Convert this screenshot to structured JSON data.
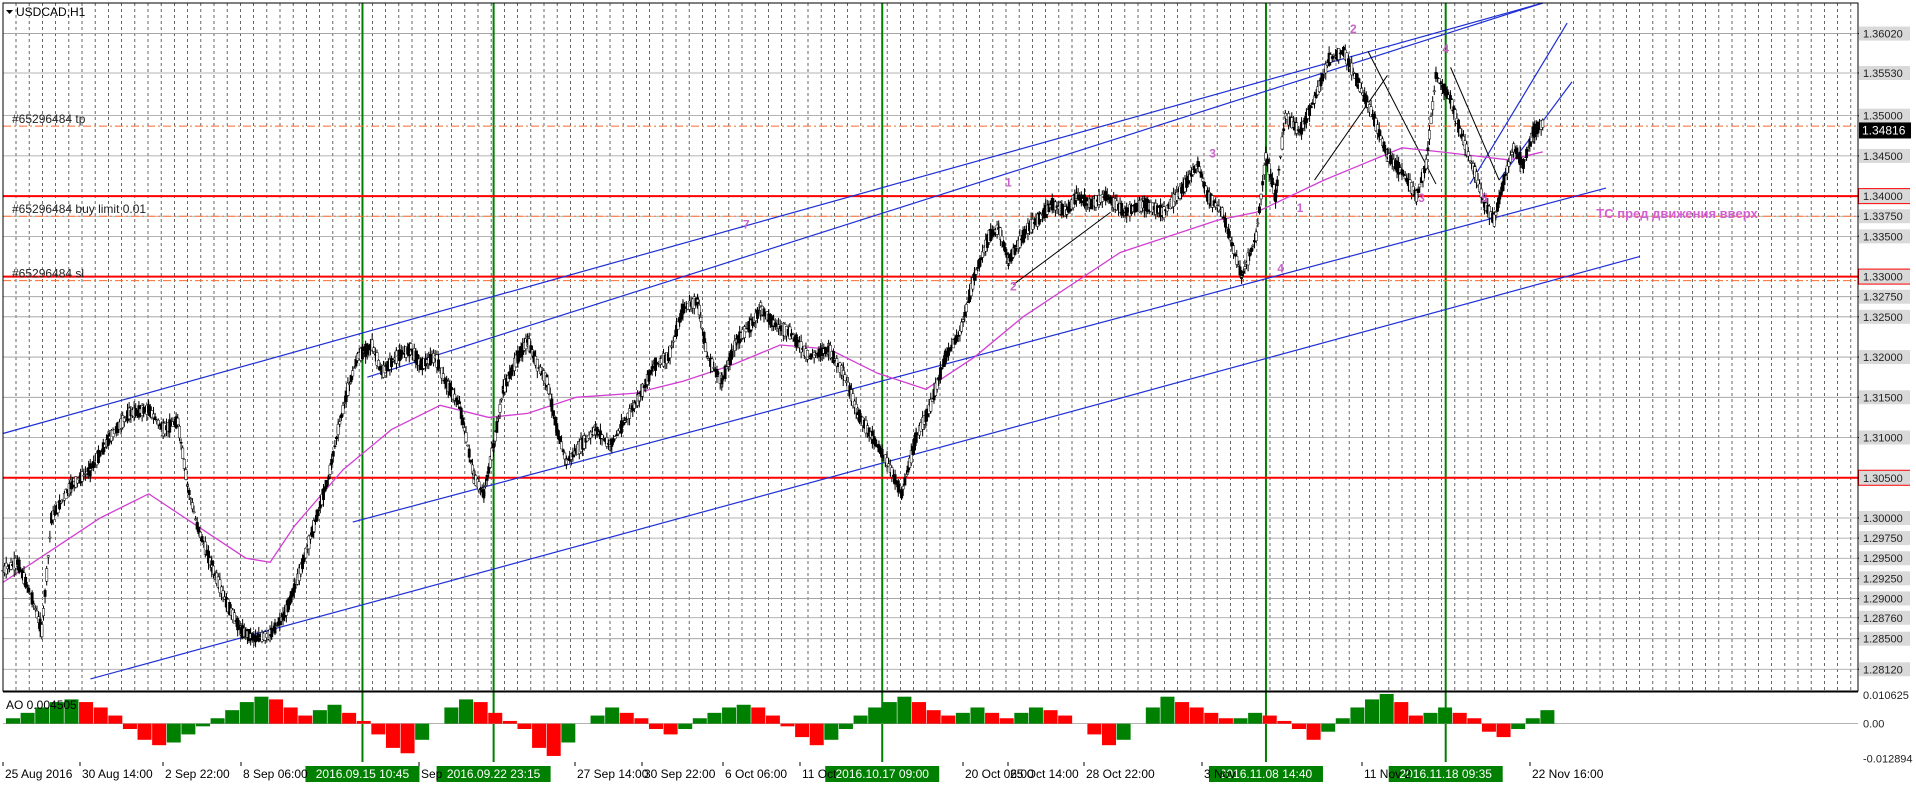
{
  "window": {
    "symbol_title": "USDCAD,H1"
  },
  "colors": {
    "background": "#ffffff",
    "grid": "#000000",
    "candles": "#000000",
    "moving_average": "#d33fd3",
    "channel_lines": "#1f2fd6",
    "horizontal_levels": "#ff0000",
    "order_lines": "#ff6a2a",
    "vertical_markers": "#008000",
    "wave_labels": "#c864c8",
    "annotation_text": "#d35fd3",
    "ao_up": "#008000",
    "ao_down": "#ff0000",
    "price_tag_bg": "#000000",
    "level_tag_bg": "#ff0000"
  },
  "chart_data": {
    "type": "line",
    "title": "USDCAD,H1",
    "xlabel": "",
    "ylabel": "",
    "ylim": [
      1.2785,
      1.364
    ],
    "grid": true,
    "x_tick_labels": [
      "25 Aug 2016",
      "30 Aug 14:00",
      "2 Sep 22:00",
      "8 Sep 06:00",
      "Sep",
      "27 Sep 14:00",
      "30 Sep 22:00",
      "6 Oct 06:00",
      "11 Oct",
      "20 Oct 06:00",
      "25 Oct 14:00",
      "28 Oct 22:00",
      "3 Nov",
      "11 Nov 2",
      "22 Nov 16:00"
    ],
    "y_tick_labels": [
      "1.36020",
      "1.35530",
      "1.35000",
      "1.34500",
      "1.34000",
      "1.33750",
      "1.33500",
      "1.33000",
      "1.32750",
      "1.32500",
      "1.32000",
      "1.31500",
      "1.31000",
      "1.30500",
      "1.30000",
      "1.29750",
      "1.29500",
      "1.29250",
      "1.29000",
      "1.28760",
      "1.28500",
      "1.28120"
    ],
    "current_price": "1.34816",
    "price_path": [
      [
        0,
        1.2935
      ],
      [
        3,
        1.2945
      ],
      [
        6,
        1.29
      ],
      [
        8,
        1.286
      ],
      [
        10,
        1.3
      ],
      [
        14,
        1.304
      ],
      [
        18,
        1.306
      ],
      [
        22,
        1.31
      ],
      [
        26,
        1.313
      ],
      [
        30,
        1.3135
      ],
      [
        33,
        1.311
      ],
      [
        36,
        1.312
      ],
      [
        38,
        1.304
      ],
      [
        40,
        1.299
      ],
      [
        43,
        1.294
      ],
      [
        46,
        1.2895
      ],
      [
        49,
        1.286
      ],
      [
        52,
        1.285
      ],
      [
        55,
        1.2855
      ],
      [
        58,
        1.288
      ],
      [
        61,
        1.293
      ],
      [
        64,
        1.299
      ],
      [
        67,
        1.305
      ],
      [
        69,
        1.311
      ],
      [
        71,
        1.316
      ],
      [
        73,
        1.32
      ],
      [
        76,
        1.3215
      ],
      [
        78,
        1.318
      ],
      [
        81,
        1.32
      ],
      [
        84,
        1.321
      ],
      [
        86,
        1.319
      ],
      [
        89,
        1.32
      ],
      [
        91,
        1.317
      ],
      [
        94,
        1.314
      ],
      [
        97,
        1.305
      ],
      [
        99,
        1.303
      ],
      [
        101,
        1.309
      ],
      [
        103,
        1.316
      ],
      [
        106,
        1.32
      ],
      [
        108,
        1.322
      ],
      [
        110,
        1.319
      ],
      [
        112,
        1.317
      ],
      [
        114,
        1.311
      ],
      [
        116,
        1.307
      ],
      [
        119,
        1.309
      ],
      [
        122,
        1.311
      ],
      [
        125,
        1.309
      ],
      [
        128,
        1.312
      ],
      [
        131,
        1.315
      ],
      [
        134,
        1.319
      ],
      [
        137,
        1.32
      ],
      [
        140,
        1.326
      ],
      [
        143,
        1.327
      ],
      [
        145,
        1.32
      ],
      [
        148,
        1.317
      ],
      [
        151,
        1.322
      ],
      [
        154,
        1.324
      ],
      [
        156,
        1.326
      ],
      [
        159,
        1.324
      ],
      [
        162,
        1.323
      ],
      [
        166,
        1.32
      ],
      [
        170,
        1.321
      ],
      [
        173,
        1.318
      ],
      [
        176,
        1.313
      ],
      [
        179,
        1.31
      ],
      [
        182,
        1.307
      ],
      [
        185,
        1.303
      ],
      [
        188,
        1.31
      ],
      [
        191,
        1.314
      ],
      [
        194,
        1.32
      ],
      [
        197,
        1.323
      ],
      [
        200,
        1.33
      ],
      [
        203,
        1.335
      ],
      [
        205,
        1.336
      ],
      [
        207,
        1.332
      ],
      [
        209,
        1.334
      ],
      [
        211,
        1.336
      ],
      [
        213,
        1.337
      ],
      [
        216,
        1.339
      ],
      [
        219,
        1.338
      ],
      [
        221,
        1.34
      ],
      [
        224,
        1.339
      ],
      [
        227,
        1.34
      ],
      [
        231,
        1.338
      ],
      [
        235,
        1.339
      ],
      [
        239,
        1.338
      ],
      [
        243,
        1.341
      ],
      [
        246,
        1.344
      ],
      [
        248,
        1.34
      ],
      [
        251,
        1.338
      ],
      [
        253,
        1.334
      ],
      [
        255,
        1.33
      ],
      [
        258,
        1.335
      ],
      [
        260,
        1.345
      ],
      [
        262,
        1.34
      ],
      [
        264,
        1.35
      ],
      [
        267,
        1.348
      ],
      [
        270,
        1.352
      ],
      [
        273,
        1.357
      ],
      [
        276,
        1.358
      ],
      [
        279,
        1.354
      ],
      [
        282,
        1.35
      ],
      [
        285,
        1.345
      ],
      [
        288,
        1.343
      ],
      [
        291,
        1.34
      ],
      [
        293,
        1.344
      ],
      [
        295,
        1.355
      ],
      [
        298,
        1.352
      ],
      [
        300,
        1.348
      ],
      [
        303,
        1.343
      ],
      [
        305,
        1.339
      ],
      [
        307,
        1.337
      ],
      [
        309,
        1.342
      ],
      [
        311,
        1.346
      ],
      [
        313,
        1.344
      ],
      [
        315,
        1.348
      ],
      [
        317,
        1.349
      ]
    ],
    "moving_average": [
      [
        0,
        1.292
      ],
      [
        10,
        1.296
      ],
      [
        20,
        1.3
      ],
      [
        30,
        1.303
      ],
      [
        40,
        1.299
      ],
      [
        50,
        1.295
      ],
      [
        55,
        1.2945
      ],
      [
        60,
        1.299
      ],
      [
        70,
        1.306
      ],
      [
        80,
        1.311
      ],
      [
        90,
        1.314
      ],
      [
        100,
        1.3125
      ],
      [
        108,
        1.313
      ],
      [
        118,
        1.315
      ],
      [
        130,
        1.3155
      ],
      [
        140,
        1.317
      ],
      [
        150,
        1.319
      ],
      [
        160,
        1.3215
      ],
      [
        170,
        1.321
      ],
      [
        180,
        1.318
      ],
      [
        190,
        1.316
      ],
      [
        200,
        1.32
      ],
      [
        210,
        1.325
      ],
      [
        220,
        1.329
      ],
      [
        230,
        1.333
      ],
      [
        240,
        1.335
      ],
      [
        250,
        1.337
      ],
      [
        258,
        1.338
      ],
      [
        265,
        1.34
      ],
      [
        272,
        1.342
      ],
      [
        280,
        1.344
      ],
      [
        288,
        1.346
      ],
      [
        296,
        1.3455
      ],
      [
        303,
        1.345
      ],
      [
        310,
        1.3445
      ],
      [
        317,
        1.3455
      ]
    ],
    "channels": [
      {
        "name": "outer-upper",
        "x": [
          0,
          317
        ],
        "y": [
          1.3105,
          1.364
        ]
      },
      {
        "name": "inner-upper",
        "x": [
          75,
          317
        ],
        "y": [
          1.3175,
          1.364
        ]
      },
      {
        "name": "mid-rising",
        "x": [
          72,
          330
        ],
        "y": [
          1.2995,
          1.341
        ]
      },
      {
        "name": "lower",
        "x": [
          18,
          337
        ],
        "y": [
          1.28,
          1.3325
        ]
      },
      {
        "name": "steep-a",
        "x": [
          302,
          322
        ],
        "y": [
          1.3415,
          1.3615
        ]
      },
      {
        "name": "steep-b",
        "x": [
          308,
          323
        ],
        "y": [
          1.342,
          1.3542
        ]
      },
      {
        "name": "wave-1",
        "x": [
          208,
          228
        ],
        "y": [
          1.329,
          1.338
        ]
      },
      {
        "name": "wave-2",
        "x": [
          270,
          285
        ],
        "y": [
          1.342,
          1.355
        ]
      },
      {
        "name": "wave-3",
        "x": [
          281,
          295
        ],
        "y": [
          1.358,
          1.3415
        ]
      },
      {
        "name": "wave-4",
        "x": [
          298,
          308
        ],
        "y": [
          1.356,
          1.342
        ]
      }
    ],
    "horizontal_levels": [
      {
        "price": 1.34,
        "label": "1.34000"
      },
      {
        "price": 1.33,
        "label": "1.33000"
      },
      {
        "price": 1.305,
        "label": "1.30500"
      }
    ],
    "order_lines": [
      {
        "price": 1.3487,
        "label": "#65296484 tp"
      },
      {
        "price": 1.3375,
        "label": "#65296484 buy limit 0.01"
      },
      {
        "price": 1.3295,
        "label": "#65296484 sl"
      }
    ],
    "vertical_markers": [
      {
        "x": 74,
        "label": "2016.09.15 10:45"
      },
      {
        "x": 101,
        "label": "2016.09.22 23:15"
      },
      {
        "x": 181,
        "label": "2016.10.17 09:00"
      },
      {
        "x": 260,
        "label": "2016.11.08 14:40"
      },
      {
        "x": 297,
        "label": "2016.11.18 09:35"
      }
    ],
    "wave_labels": [
      {
        "x": 207,
        "price": 1.3412,
        "text": "1"
      },
      {
        "x": 208,
        "price": 1.3283,
        "text": "2"
      },
      {
        "x": 249,
        "price": 1.3448,
        "text": "3"
      },
      {
        "x": 263,
        "price": 1.3305,
        "text": "4"
      },
      {
        "x": 267,
        "price": 1.338,
        "text": "1"
      },
      {
        "x": 278,
        "price": 1.3603,
        "text": "2"
      },
      {
        "x": 292,
        "price": 1.3393,
        "text": "3"
      },
      {
        "x": 297,
        "price": 1.3578,
        "text": "4"
      },
      {
        "x": 305,
        "price": 1.3393,
        "text": "5"
      },
      {
        "x": 153,
        "price": 1.336,
        "text": "7"
      }
    ],
    "annotation": {
      "text": "ТС пред движения вверх",
      "x": 328,
      "price": 1.3373
    },
    "ao": {
      "label": "AO 0.004505",
      "ticks": [
        "0.010625",
        "0.00",
        "-0.012894"
      ],
      "ylim": [
        -0.0135,
        0.011
      ],
      "values": [
        0.002,
        0.004,
        0.006,
        0.008,
        0.009,
        0.008,
        0.006,
        0.003,
        -0.002,
        -0.006,
        -0.008,
        -0.007,
        -0.004,
        -0.001,
        0.002,
        0.005,
        0.008,
        0.01,
        0.009,
        0.006,
        0.003,
        0.005,
        0.007,
        0.004,
        0.001,
        -0.004,
        -0.009,
        -0.011,
        -0.006,
        0.0,
        0.006,
        0.009,
        0.008,
        0.004,
        0.001,
        -0.002,
        -0.009,
        -0.012,
        -0.007,
        0.0,
        0.003,
        0.006,
        0.004,
        0.002,
        -0.002,
        -0.004,
        -0.002,
        0.002,
        0.004,
        0.006,
        0.007,
        0.006,
        0.003,
        -0.001,
        -0.005,
        -0.008,
        -0.006,
        -0.002,
        0.003,
        0.006,
        0.008,
        0.01,
        0.008,
        0.005,
        0.003,
        0.004,
        0.006,
        0.004,
        0.002,
        0.004,
        0.006,
        0.005,
        0.003,
        0.0,
        -0.004,
        -0.008,
        -0.006,
        0.0,
        0.006,
        0.01,
        0.008,
        0.006,
        0.004,
        0.002,
        0.002,
        0.004,
        0.003,
        0.001,
        -0.002,
        -0.006,
        -0.003,
        0.002,
        0.006,
        0.009,
        0.011,
        0.008,
        0.003,
        0.004,
        0.006,
        0.004,
        0.002,
        -0.003,
        -0.005,
        -0.002,
        0.002,
        0.005
      ]
    }
  }
}
